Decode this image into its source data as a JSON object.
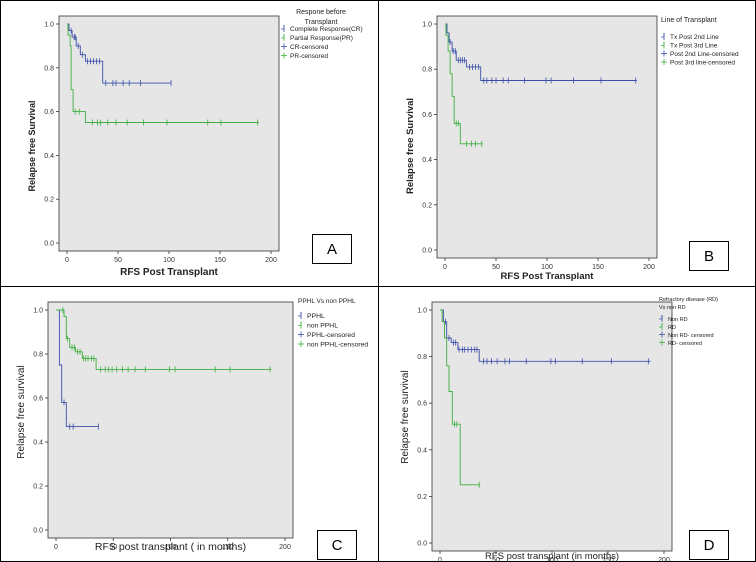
{
  "colors": {
    "series1": "#3b4fa8",
    "series2": "#3fae3f",
    "plotBg": "#e6e6e6",
    "axis": "#333333"
  },
  "chart_data": [
    {
      "type": "line",
      "panel_label": "A",
      "xlabel": "RFS Post Transplant",
      "ylabel": "Relapse free Survival",
      "xlim": [
        0,
        200
      ],
      "ylim": [
        0,
        1.0
      ],
      "xticks": [
        "0",
        "50",
        "100",
        "150",
        "200"
      ],
      "yticks": [
        "0.0",
        "0.2",
        "0.4",
        "0.6",
        "0.8",
        "1.0"
      ],
      "legend_title": [
        "Respone before",
        "Transplant"
      ],
      "legend": [
        "Complete Response(CR)",
        "Partial Response(PR)",
        "CR-censored",
        "PR-censored"
      ],
      "series": [
        {
          "name": "Complete Response(CR)",
          "steps": [
            [
              0,
              1.0
            ],
            [
              2,
              0.97
            ],
            [
              5,
              0.94
            ],
            [
              9,
              0.9
            ],
            [
              13,
              0.86
            ],
            [
              18,
              0.83
            ],
            [
              35,
              0.73
            ],
            [
              102,
              0.73
            ]
          ],
          "censors": [
            4,
            7,
            8,
            11,
            15,
            20,
            23,
            26,
            29,
            32,
            38,
            45,
            48,
            55,
            61,
            72,
            102
          ]
        },
        {
          "name": "Partial Response(PR)",
          "steps": [
            [
              0,
              1.0
            ],
            [
              1,
              0.95
            ],
            [
              3,
              0.9
            ],
            [
              4,
              0.7
            ],
            [
              6,
              0.6
            ],
            [
              18,
              0.55
            ],
            [
              188,
              0.55
            ]
          ],
          "censors": [
            8,
            12,
            25,
            30,
            33,
            40,
            48,
            59,
            75,
            98,
            138,
            151,
            187
          ]
        }
      ]
    },
    {
      "type": "line",
      "panel_label": "B",
      "xlabel": "RFS Post Transplant",
      "ylabel": "Relapse free Survival",
      "xlim": [
        0,
        200
      ],
      "ylim": [
        0,
        1.0
      ],
      "xticks": [
        "0",
        "50",
        "100",
        "150",
        "200"
      ],
      "yticks": [
        "0.0",
        "0.2",
        "0.4",
        "0.6",
        "0.8",
        "1.0"
      ],
      "legend_title": [
        "Line of Transplant"
      ],
      "legend": [
        "Tx Post 2nd Line",
        "Tx Post 3rd Line",
        "Post 2nd Line-censored",
        "Post 3rd line-censored"
      ],
      "series": [
        {
          "name": "Tx Post 2nd Line",
          "steps": [
            [
              0,
              1.0
            ],
            [
              2,
              0.96
            ],
            [
              4,
              0.92
            ],
            [
              7,
              0.88
            ],
            [
              11,
              0.84
            ],
            [
              21,
              0.81
            ],
            [
              35,
              0.75
            ],
            [
              188,
              0.75
            ]
          ],
          "censors": [
            5,
            8,
            10,
            13,
            15,
            17,
            19,
            24,
            27,
            30,
            33,
            38,
            41,
            46,
            50,
            57,
            62,
            78,
            99,
            104,
            126,
            153,
            187
          ]
        },
        {
          "name": "Tx Post 3rd Line",
          "steps": [
            [
              0,
              1.0
            ],
            [
              1,
              0.95
            ],
            [
              3,
              0.88
            ],
            [
              5,
              0.78
            ],
            [
              7,
              0.68
            ],
            [
              9,
              0.56
            ],
            [
              15,
              0.47
            ],
            [
              37,
              0.47
            ]
          ],
          "censors": [
            11,
            13,
            21,
            26,
            30,
            36
          ]
        }
      ]
    },
    {
      "type": "line",
      "panel_label": "C",
      "xlabel": "RFS post transplant ( in months)",
      "ylabel": "Relapse free survival",
      "xlim": [
        0,
        200
      ],
      "ylim": [
        0,
        1.0
      ],
      "xticks": [
        "0",
        "50",
        "100",
        "150",
        "200"
      ],
      "yticks": [
        "0.0",
        "0.2",
        "0.4",
        "0.6",
        "0.8",
        "1.0"
      ],
      "legend_title": [
        "PPHL Vs non PPHL"
      ],
      "legend": [
        "PPHL",
        "non PPHL",
        "PPHL-censored",
        "non PPHL-censored"
      ],
      "series": [
        {
          "name": "PPHL",
          "steps": [
            [
              0,
              1.0
            ],
            [
              3,
              0.75
            ],
            [
              5,
              0.58
            ],
            [
              9,
              0.47
            ],
            [
              37,
              0.47
            ]
          ],
          "censors": [
            7,
            12,
            15,
            37
          ]
        },
        {
          "name": "non PPHL",
          "steps": [
            [
              0,
              1.0
            ],
            [
              4,
              1.0
            ],
            [
              7,
              0.97
            ],
            [
              9,
              0.87
            ],
            [
              12,
              0.83
            ],
            [
              17,
              0.81
            ],
            [
              23,
              0.78
            ],
            [
              35,
              0.73
            ],
            [
              188,
              0.73
            ]
          ],
          "censors": [
            6,
            10,
            14,
            16,
            19,
            21,
            24,
            26,
            28,
            31,
            33,
            39,
            43,
            46,
            49,
            53,
            58,
            63,
            69,
            78,
            99,
            104,
            139,
            152,
            187
          ]
        }
      ]
    },
    {
      "type": "line",
      "panel_label": "D",
      "xlabel": "RFS post transplant (in months)",
      "ylabel": "Relapse free survival",
      "xlim": [
        0,
        200
      ],
      "ylim": [
        0,
        1.0
      ],
      "xticks": [
        "0",
        "50",
        "100",
        "150",
        "200"
      ],
      "yticks": [
        "0.0",
        "0.2",
        "0.4",
        "0.6",
        "0.8",
        "1.0"
      ],
      "legend_title": [
        "Refractory disease (RD)",
        "Vs non RD"
      ],
      "legend": [
        "Non RD",
        "RD",
        "Non RD- censored",
        "RD- censored"
      ],
      "series": [
        {
          "name": "Non RD",
          "steps": [
            [
              0,
              1.0
            ],
            [
              3,
              0.95
            ],
            [
              6,
              0.88
            ],
            [
              10,
              0.86
            ],
            [
              16,
              0.83
            ],
            [
              35,
              0.78
            ],
            [
              188,
              0.78
            ]
          ],
          "censors": [
            5,
            8,
            12,
            14,
            17,
            20,
            22,
            25,
            28,
            31,
            33,
            39,
            42,
            46,
            51,
            58,
            62,
            77,
            99,
            103,
            127,
            153,
            186
          ]
        },
        {
          "name": "RD",
          "steps": [
            [
              0,
              1.0
            ],
            [
              2,
              0.95
            ],
            [
              4,
              0.88
            ],
            [
              6,
              0.76
            ],
            [
              8,
              0.65
            ],
            [
              11,
              0.51
            ],
            [
              18,
              0.25
            ],
            [
              36,
              0.25
            ]
          ],
          "censors": [
            13,
            15,
            35
          ]
        }
      ]
    }
  ]
}
